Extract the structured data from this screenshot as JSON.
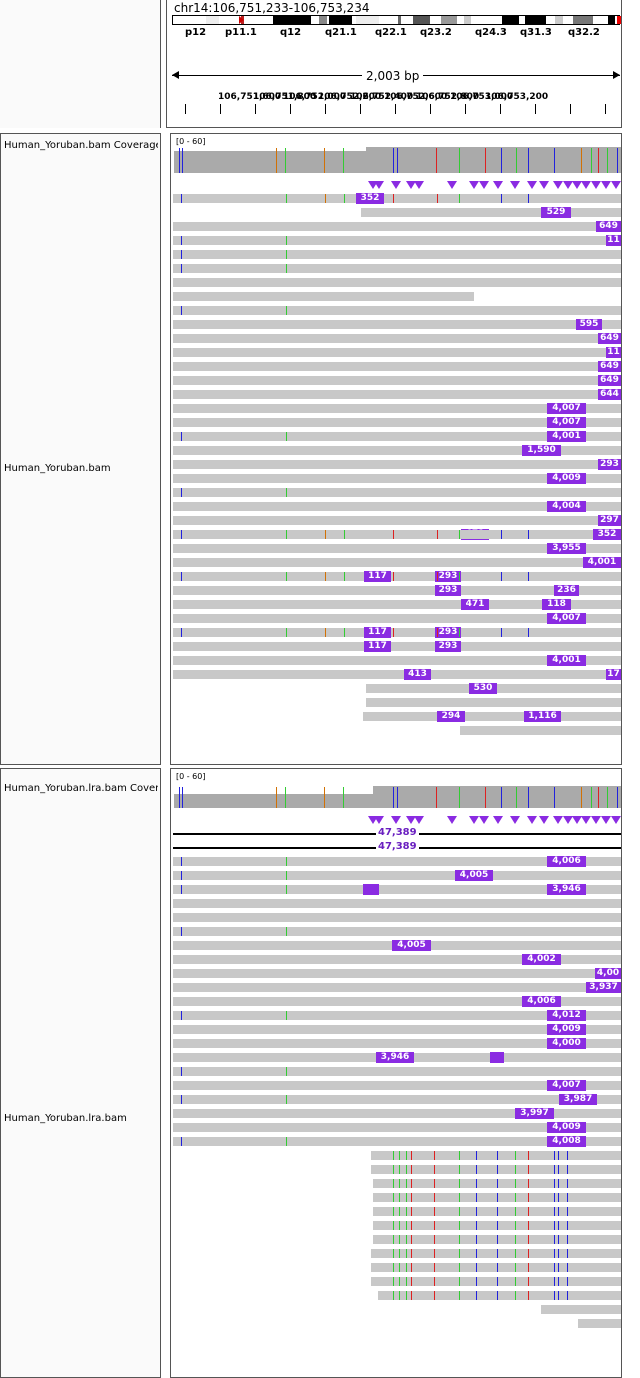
{
  "header": {
    "locus": "chr14:106,751,233-106,753,234",
    "bands": [
      "p12",
      "p11.1",
      "q12",
      "q21.1",
      "q22.1",
      "q23.2",
      "q24.3",
      "q31.3",
      "q32.2"
    ],
    "span_label": "2,003 bp",
    "tick_labels": [
      "106,751,600",
      "106,751,800",
      "106,752,000",
      "106,752,200",
      "106,752,400",
      "106,752,600",
      "106,752,800",
      "106,753,000",
      "106,753,200"
    ]
  },
  "tracks": {
    "bam_coverage_name": "Human_Yoruban.bam Coverage",
    "bam_coverage_range": "[0 - 60]",
    "bam_name": "Human_Yoruban.bam",
    "lra_coverage_name": "Human_Yoruban.lra.bam Coverage",
    "lra_coverage_range": "[0 - 60]",
    "lra_name": "Human_Yoruban.lra.bam"
  },
  "bam_insertions": [
    "352",
    "529",
    "649",
    "11",
    "595",
    "649",
    "11",
    "649",
    "649",
    "644",
    "4,007",
    "4,007",
    "4,001",
    "1,590",
    "293",
    "4,009",
    "4,004",
    "297",
    "471",
    "352",
    "3,955",
    "4,001",
    "117",
    "293",
    "293",
    "236",
    "471",
    "118",
    "4,007",
    "117",
    "293",
    "117",
    "293",
    "4,001",
    "413",
    "17",
    "530",
    "294",
    "1,116"
  ],
  "lra_spans": [
    "47,389",
    "47,389"
  ],
  "lra_insertions": [
    "4,006",
    "4,005",
    "3,946",
    "4,005",
    "4,002",
    "4,00",
    "3,937",
    "4,006",
    "4,012",
    "4,009",
    "4,000",
    "3,946",
    "4,007",
    "3,987",
    "3,997",
    "4,009",
    "4,008"
  ],
  "colors": {
    "insertion": "#8a2be2",
    "read": "#c8c8c8",
    "coverage": "#aaaaaa",
    "mismatch_A": "#33cc33",
    "mismatch_C": "#2222dd",
    "mismatch_G": "#d17105",
    "mismatch_T": "#dd2222"
  }
}
